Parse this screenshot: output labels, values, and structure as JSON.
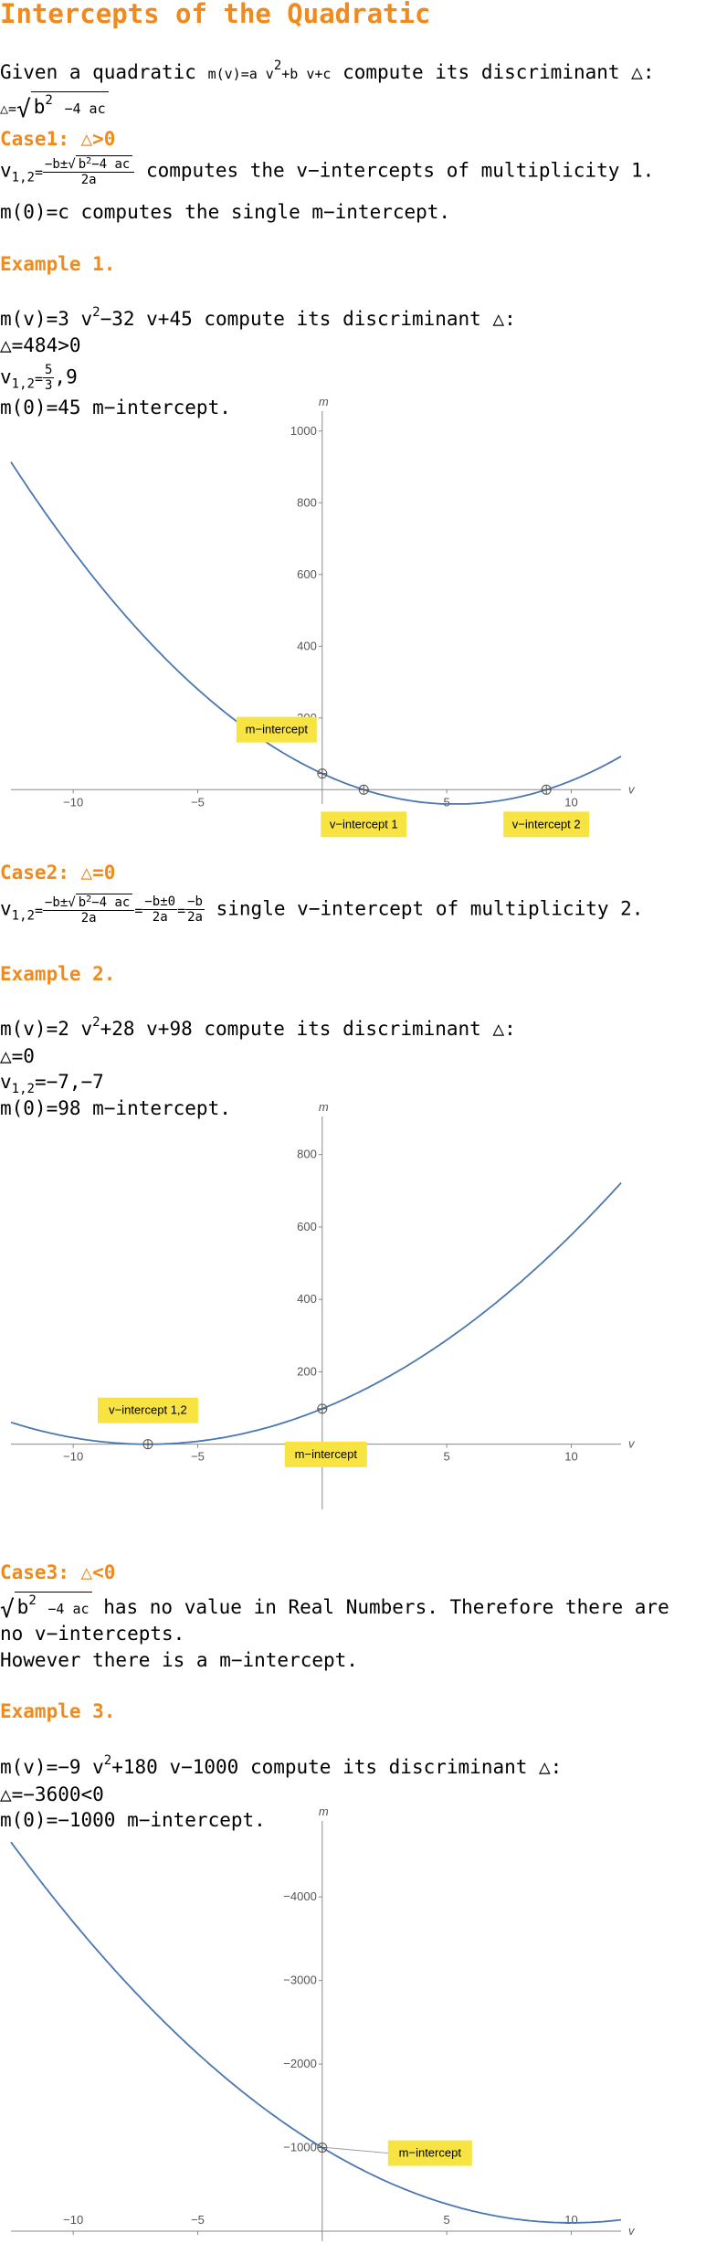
{
  "title": "Intercepts of the Quadratic",
  "intro": {
    "text1": "Given a quadratic ",
    "m_v": "m(v)",
    "eq": "=a v",
    "sq": "2",
    "rest": "+b v+c",
    "text2": " compute its discriminant △:",
    "disc_lhs": "△=",
    "disc_expr_b": "b",
    "disc_expr_rest": "−4 ac"
  },
  "case1": {
    "heading": "Case1: △>0",
    "v12": "v",
    "v12_sub": "1,2",
    "eq": "=",
    "frac_num_pre": "−b±",
    "frac_num_sqrt": "b",
    "frac_num_sqrt_rest": "−4 ac",
    "frac_den": "2a",
    "text_v": " computes the v−intercepts of multiplicity 1.",
    "m_line": "m(0)=c computes the single m−intercept."
  },
  "example1": {
    "heading": "Example 1.",
    "eq_pre": "m(v)=3 v",
    "eq_sq": "2",
    "eq_rest": "−32 v+45 compute its discriminant △:",
    "disc": "△=484>0",
    "v12": "v",
    "v12_sub": "1,2",
    "v12_eq": "=",
    "v12_num": "5",
    "v12_den": "3",
    "v12_tail": ",9",
    "m0": "m(0)=45  m−intercept."
  },
  "case2": {
    "heading": "Case2: △=0",
    "v12": "v",
    "v12_sub": "1,2",
    "eq": "=",
    "f1_num_pre": "−b±",
    "f1_num_sqrt": "b",
    "f1_num_sqrt_rest": "−4 ac",
    "f1_den": "2a",
    "eq2": "=",
    "f2_num": "−b±0",
    "f2_den": "2a",
    "eq3": "=",
    "f3_num": "−b",
    "f3_den": "2a",
    "text": " single v−intercept of multiplicity 2."
  },
  "example2": {
    "heading": "Example 2.",
    "eq_pre": "m(v)=2 v",
    "eq_sq": "2",
    "eq_rest": "+28 v+98 compute its discriminant △:",
    "disc": "△=0",
    "v12": "v",
    "v12_sub": "1,2",
    "v12_rest": "=−7,−7",
    "m0": "m(0)=98  m−intercept."
  },
  "case3": {
    "heading": "Case3: △<0",
    "sqrt_b": "b",
    "sqrt_rest": "−4 ac",
    "text1": " has no value in Real Numbers. Therefore there are",
    "text2": "no v−intercepts.",
    "text3": "However there is a m−intercept."
  },
  "example3": {
    "heading": "Example 3.",
    "eq_pre": "m(v)=−9 v",
    "eq_sq": "2",
    "eq_rest": "+180 v−1000 compute its discriminant △:",
    "disc": "△=−3600<0",
    "m0": "m(0)=−1000 m−intercept."
  },
  "colors": {
    "accent": "#f08a1c",
    "curve": "#4a77b0",
    "callout": "#f7e442"
  },
  "chart_data": [
    {
      "type": "line",
      "function": "m(v)=3v^2-32v+45",
      "xlabel": "v",
      "ylabel": "m",
      "xlim": [
        -12.5,
        12
      ],
      "ylim": [
        -40,
        1030
      ],
      "xticks": [
        -10,
        -5,
        5,
        10
      ],
      "yticks": [
        200,
        400,
        600,
        800,
        1000
      ],
      "series": [
        {
          "coeffs": [
            3,
            -32,
            45
          ]
        }
      ],
      "points": [
        {
          "label": "m−intercept",
          "x": 0,
          "y": 45
        },
        {
          "label": "v−intercept 1",
          "x": 1.6667,
          "y": 0
        },
        {
          "label": "v−intercept 2",
          "x": 9,
          "y": 0
        }
      ]
    },
    {
      "type": "line",
      "function": "m(v)=2v^2+28v+98",
      "xlabel": "v",
      "ylabel": "m",
      "xlim": [
        -12.5,
        12
      ],
      "ylim": [
        -180,
        880
      ],
      "xticks": [
        -10,
        -5,
        5,
        10
      ],
      "yticks": [
        200,
        400,
        600,
        800
      ],
      "series": [
        {
          "coeffs": [
            2,
            28,
            98
          ]
        }
      ],
      "points": [
        {
          "label": "v−intercept 1,2",
          "x": -7,
          "y": 0
        },
        {
          "label": "m−intercept",
          "x": 0,
          "y": 98
        }
      ]
    },
    {
      "type": "line",
      "function": "m(v)=-9v^2+180v-1000",
      "xlabel": "v",
      "ylabel": "m",
      "xlim": [
        -12.5,
        12
      ],
      "ylim": [
        -4800,
        120
      ],
      "xticks": [
        -10,
        -5,
        5,
        10
      ],
      "yticks": [
        -1000,
        -2000,
        -3000,
        -4000
      ],
      "series": [
        {
          "coeffs": [
            -9,
            180,
            -1000
          ]
        }
      ],
      "points": [
        {
          "label": "m−intercept",
          "x": 0,
          "y": -1000
        }
      ]
    }
  ]
}
